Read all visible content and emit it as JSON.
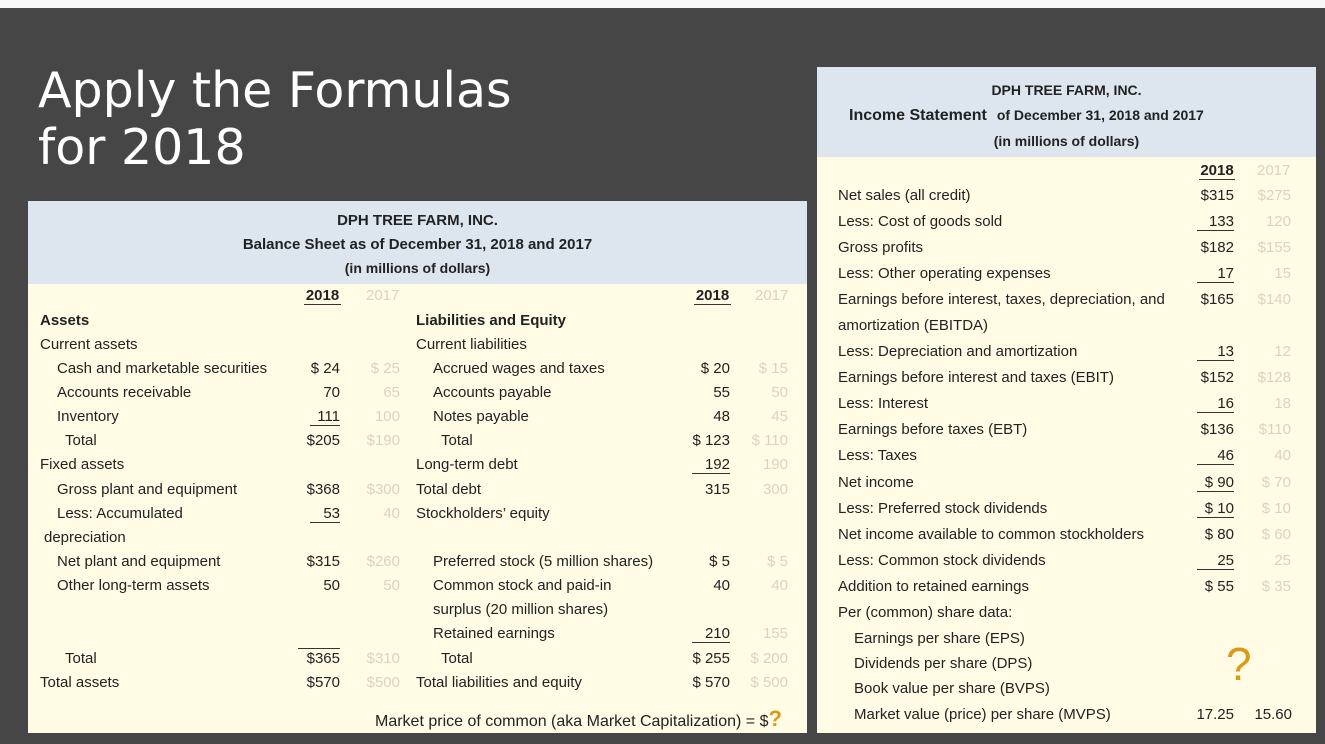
{
  "slide": {
    "title_line1": "Apply the Formulas",
    "title_line2": "for 2018"
  },
  "balance_sheet": {
    "company": "DPH TREE FARM, INC.",
    "title": "Balance Sheet as of December 31, 2018 and 2017",
    "units": "(in millions of dollars)",
    "year_current": "2018",
    "year_prior": "2017",
    "assets_heading": "Assets",
    "liab_heading": "Liabilities and Equity",
    "current_assets_label": "Current assets",
    "current_liabilities_label": "Current liabilities",
    "assets_rows": [
      {
        "label": "Cash and marketable securities",
        "v2018": "$ 24",
        "v2017": "$ 25"
      },
      {
        "label": "Accounts receivable",
        "v2018": "70",
        "v2017": "65"
      },
      {
        "label": "Inventory",
        "v2018": "111",
        "v2017": "100"
      },
      {
        "label": "Total",
        "v2018": "$205",
        "v2017": "$190"
      }
    ],
    "fixed_assets_label": "Fixed assets",
    "gross_plant": {
      "label": "Gross plant and equipment",
      "v2018": "$368",
      "v2017": "$300"
    },
    "accum_dep": {
      "label1": "Less: Accumulated",
      "label2": "depreciation",
      "v2018": "53",
      "v2017": "40"
    },
    "net_plant": {
      "label": "Net plant and equipment",
      "v2018": "$315",
      "v2017": "$260"
    },
    "other_lt": {
      "label": "Other long-term assets",
      "v2018": "50",
      "v2017": "50"
    },
    "fa_total": {
      "label": "Total",
      "v2018": "$365",
      "v2017": "$310"
    },
    "total_assets": {
      "label": "Total assets",
      "v2018": "$570",
      "v2017": "$500"
    },
    "liab_rows": [
      {
        "label": "Accrued wages and taxes",
        "v2018": "$ 20",
        "v2017": "$ 15"
      },
      {
        "label": "Accounts payable",
        "v2018": "55",
        "v2017": "50"
      },
      {
        "label": "Notes payable",
        "v2018": "48",
        "v2017": "45"
      },
      {
        "label": "Total",
        "v2018": "$ 123",
        "v2017": "$ 110"
      }
    ],
    "lt_debt": {
      "label": "Long-term debt",
      "v2018": "192",
      "v2017": "190"
    },
    "total_debt": {
      "label": "Total debt",
      "v2018": "315",
      "v2017": "300"
    },
    "se_label": "Stockholders’ equity",
    "preferred": {
      "label": "Preferred stock (5 million shares)",
      "v2018": "$ 5",
      "v2017": "$ 5"
    },
    "common": {
      "label1": "Common stock and paid-in",
      "label2": "surplus (20 million shares)",
      "v2018": "40",
      "v2017": "40"
    },
    "retained": {
      "label": "Retained earnings",
      "v2018": "210",
      "v2017": "155"
    },
    "eq_total": {
      "label": "Total",
      "v2018": "$ 255",
      "v2017": "$ 200"
    },
    "total_le": {
      "label": "Total liabilities and equity",
      "v2018": "$ 570",
      "v2017": "$ 500"
    },
    "market_cap_text": "Market price of common (aka Market Capitalization) = $",
    "market_cap_q": "?"
  },
  "income_statement": {
    "company": "DPH TREE FARM, INC.",
    "title": "Income Statement",
    "title_rest": "of December 31, 2018 and 2017",
    "units": "(in millions of dollars)",
    "year_current": "2018",
    "year_prior": "2017",
    "rows": [
      {
        "label": "Net sales (all credit)",
        "v2018": "$315",
        "v2017": "$275"
      },
      {
        "label": "Less: Cost of goods sold",
        "v2018": "133",
        "v2017": "120"
      },
      {
        "label": "Gross profits",
        "v2018": "$182",
        "v2017": "$155"
      },
      {
        "label": "Less: Other operating expenses",
        "v2018": "17",
        "v2017": "15"
      },
      {
        "label": "Earnings before interest, taxes, depreciation, and",
        "v2018": "$165",
        "v2017": "$140"
      },
      {
        "label": "amortization (EBITDA)",
        "v2018": "",
        "v2017": ""
      },
      {
        "label": "Less: Depreciation and amortization",
        "v2018": "13",
        "v2017": "12"
      },
      {
        "label": "Earnings before interest and taxes (EBIT)",
        "v2018": "$152",
        "v2017": "$128"
      },
      {
        "label": "Less: Interest",
        "v2018": "16",
        "v2017": "18"
      },
      {
        "label": "Earnings before taxes (EBT)",
        "v2018": "$136",
        "v2017": "$110"
      },
      {
        "label": "Less: Taxes",
        "v2018": "46",
        "v2017": "40"
      },
      {
        "label": "Net income",
        "v2018": "$ 90",
        "v2017": "$ 70"
      },
      {
        "label": "Less: Preferred stock dividends",
        "v2018": "$ 10",
        "v2017": "$ 10"
      },
      {
        "label": "Net income available to common stockholders",
        "v2018": "$ 80",
        "v2017": "$ 60"
      },
      {
        "label": "Less: Common stock dividends",
        "v2018": "25",
        "v2017": "25"
      },
      {
        "label": "Addition to retained earnings",
        "v2018": "$ 55",
        "v2017": "$ 35"
      },
      {
        "label": "Per (common) share data:",
        "v2018": "",
        "v2017": ""
      },
      {
        "label": "Earnings per share (EPS)",
        "v2018": "",
        "v2017": ""
      },
      {
        "label": "Dividends per share (DPS)",
        "v2018": "",
        "v2017": ""
      },
      {
        "label": "Book value per share (BVPS)",
        "v2018": "",
        "v2017": ""
      },
      {
        "label": "Market value (price) per share (MVPS)",
        "v2018": "17.25",
        "v2017": "15.60"
      }
    ],
    "question_mark": "?"
  }
}
